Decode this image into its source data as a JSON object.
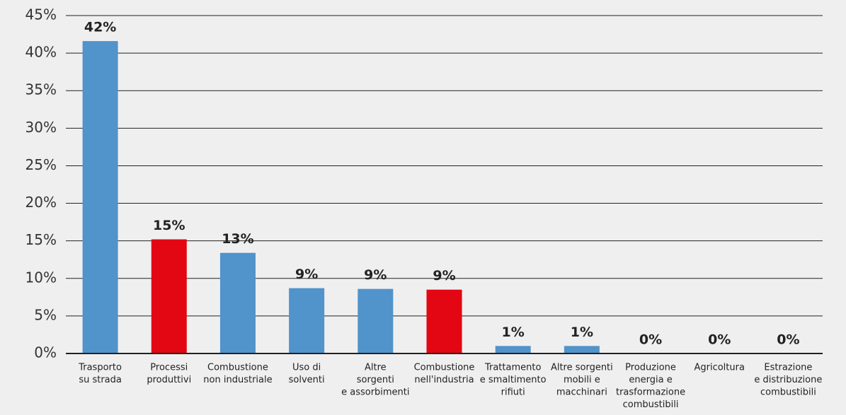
{
  "chart_data": {
    "type": "bar",
    "categories": [
      [
        "Trasporto",
        "su strada"
      ],
      [
        "Processi",
        "produttivi"
      ],
      [
        "Combustione",
        "non industriale"
      ],
      [
        "Uso di",
        "solventi"
      ],
      [
        "Altre",
        "sorgenti",
        "e assorbimenti"
      ],
      [
        "Combustione",
        "nell'industria"
      ],
      [
        "Trattamento",
        "e smaltimento",
        "rifiuti"
      ],
      [
        "Altre sorgenti",
        "mobili e",
        "macchinari"
      ],
      [
        "Produzione",
        "energia e",
        "trasformazione",
        "combustibili"
      ],
      [
        "Agricoltura"
      ],
      [
        "Estrazione",
        "e distribuzione",
        "combustibili"
      ]
    ],
    "values": [
      41.6,
      15.2,
      13.4,
      8.7,
      8.6,
      8.5,
      1,
      1,
      0,
      0,
      0
    ],
    "value_labels": [
      "42%",
      "15%",
      "13%",
      "9%",
      "9%",
      "9%",
      "1%",
      "1%",
      "0%",
      "0%",
      "0%"
    ],
    "colors": [
      "#5193cb",
      "#e30613",
      "#5193cb",
      "#5193cb",
      "#5193cb",
      "#e30613",
      "#5193cb",
      "#5193cb",
      "#5193cb",
      "#5193cb",
      "#5193cb"
    ],
    "ylim": [
      0,
      45
    ],
    "yticks": [
      {
        "value": 0,
        "label": "0%"
      },
      {
        "value": 5,
        "label": "5%"
      },
      {
        "value": 10,
        "label": "10%"
      },
      {
        "value": 15,
        "label": "15%"
      },
      {
        "value": 20,
        "label": "20%"
      },
      {
        "value": 25,
        "label": "25%"
      },
      {
        "value": 30,
        "label": "30%"
      },
      {
        "value": 35,
        "label": "35%"
      },
      {
        "value": 40,
        "label": "40%"
      },
      {
        "value": 45,
        "label": "45%"
      }
    ],
    "grid": true
  }
}
